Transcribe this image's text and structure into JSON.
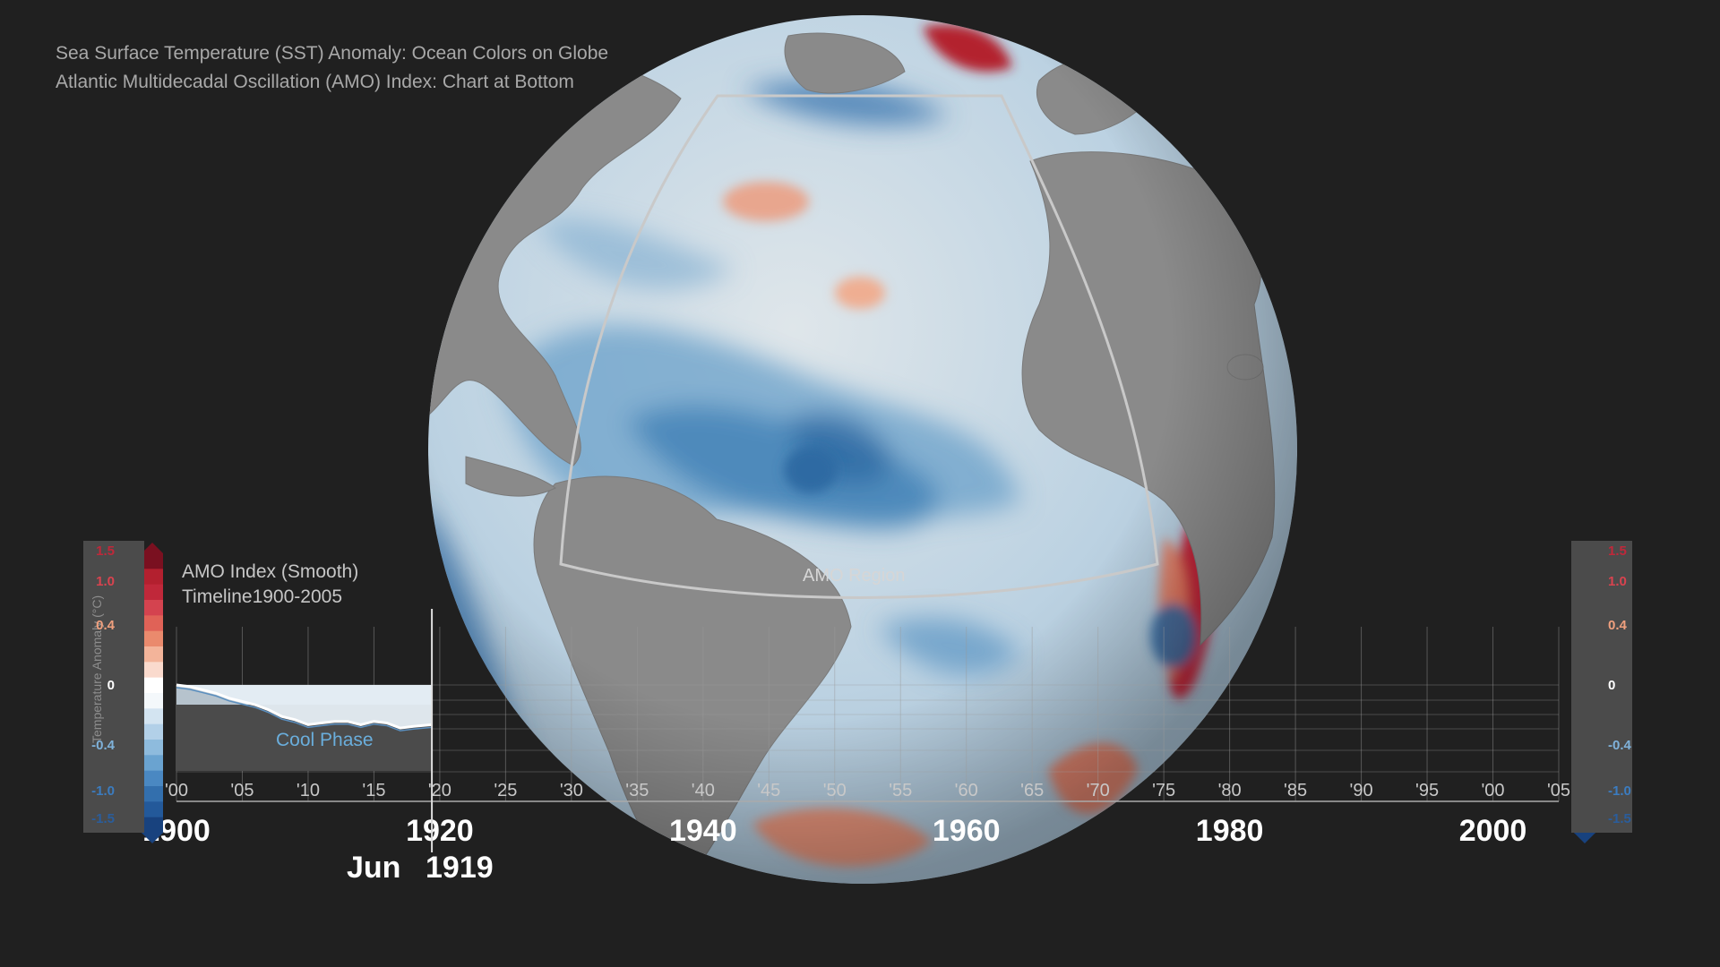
{
  "header": {
    "line1": "Sea Surface Temperature (SST) Anomaly: Ocean Colors on Globe",
    "line2": "Atlantic Multidecadal Oscillation (AMO) Index: Chart at Bottom"
  },
  "globe": {
    "region_label": "AMO Region"
  },
  "colors": {
    "background": "#202020",
    "land": "#8a8a8a",
    "ocean_neutral": "#dfe6ea",
    "cool": "#2f6ea8",
    "warm": "#c0392b",
    "phase_text": "#6aaedc"
  },
  "colorbar": {
    "axis_label": "Temperature Anomaly (°C)",
    "ticks": [
      {
        "label": "1.5",
        "value": 1.5,
        "color": "#c0283a"
      },
      {
        "label": "1.0",
        "value": 1.0,
        "color": "#d9434f"
      },
      {
        "label": "0.4",
        "value": 0.4,
        "color": "#f0a07e"
      },
      {
        "label": "0",
        "value": 0,
        "color": "#ffffff"
      },
      {
        "label": "-0.4",
        "value": -0.4,
        "color": "#7fb2da"
      },
      {
        "label": "-1.0",
        "value": -1.0,
        "color": "#3b7cc0"
      },
      {
        "label": "-1.5",
        "value": -1.5,
        "color": "#2a5d9c"
      }
    ]
  },
  "chart": {
    "title_line1": "AMO Index (Smooth)",
    "title_line2": "Timeline1900-2005",
    "phase_label": "Cool Phase",
    "current_month": "Jun",
    "current_year": "1919"
  },
  "chart_data": {
    "type": "area",
    "title": "AMO Index (Smooth)",
    "subtitle": "Timeline1900-2005",
    "xlim": [
      1900,
      2005
    ],
    "ylim": [
      -1.5,
      1.5
    ],
    "x_tick_labels": [
      "'00",
      "'05",
      "'10",
      "'15",
      "'20",
      "'25",
      "'30",
      "'35",
      "'40",
      "'45",
      "'50",
      "'55",
      "'60",
      "'65",
      "'70",
      "'75",
      "'80",
      "'85",
      "'90",
      "'95",
      "'00",
      "'05"
    ],
    "x_major_labels": [
      "1900",
      "1920",
      "1940",
      "1960",
      "1980",
      "2000"
    ],
    "x_major_values": [
      1900,
      1920,
      1940,
      1960,
      1980,
      2000
    ],
    "y_tick_labels": [
      "1.5",
      "1.0",
      "0.4",
      "0",
      "-0.4",
      "-1.0",
      "-1.5"
    ],
    "y_tick_values": [
      1.5,
      1.0,
      0.4,
      0,
      -0.4,
      -1.0,
      -1.5
    ],
    "series": [
      {
        "x": [
          1900,
          1901,
          1902,
          1903,
          1904,
          1905,
          1906,
          1907,
          1908,
          1909,
          1910,
          1911,
          1912,
          1913,
          1914,
          1915,
          1916,
          1917,
          1918,
          1919.4
        ],
        "y": [
          0,
          -0.01,
          -0.03,
          -0.05,
          -0.08,
          -0.1,
          -0.12,
          -0.15,
          -0.19,
          -0.21,
          -0.24,
          -0.23,
          -0.22,
          -0.22,
          -0.24,
          -0.22,
          -0.23,
          -0.26,
          -0.25,
          -0.24
        ]
      }
    ],
    "current_x": 1919.4,
    "grid": true
  }
}
